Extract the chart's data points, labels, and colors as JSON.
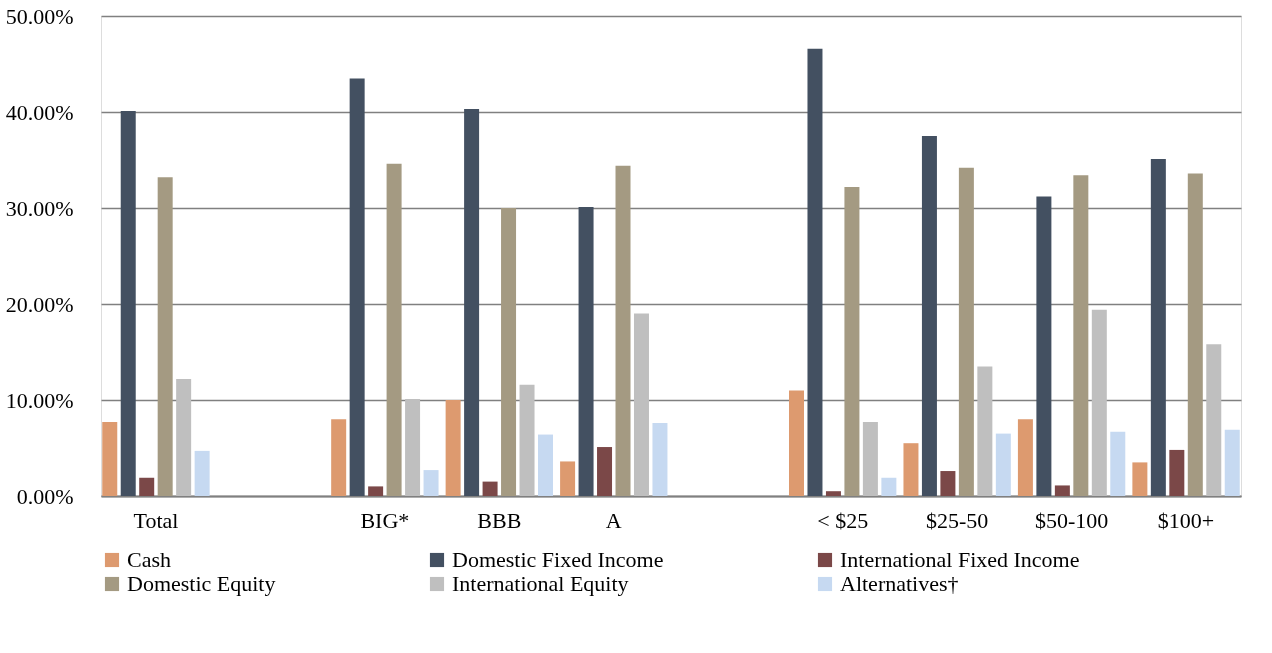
{
  "chart_data": {
    "type": "bar",
    "categories": [
      "Total",
      null,
      "BIG*",
      "BBB",
      "A",
      null,
      "< $25",
      "$25-50",
      "$50-100",
      "$100+"
    ],
    "series": [
      {
        "name": "Cash",
        "color": "#dd9a6f",
        "values": [
          7.7,
          null,
          8.0,
          10.0,
          3.6,
          null,
          11.0,
          5.5,
          8.0,
          3.5
        ]
      },
      {
        "name": "Domestic Fixed Income",
        "color": "#435061",
        "values": [
          40.1,
          null,
          43.5,
          40.3,
          30.1,
          null,
          46.6,
          37.5,
          31.2,
          35.1
        ]
      },
      {
        "name": "International Fixed Income",
        "color": "#7b4848",
        "values": [
          1.9,
          null,
          1.0,
          1.5,
          5.1,
          null,
          0.5,
          2.6,
          1.1,
          4.8
        ]
      },
      {
        "name": "Domestic Equity",
        "color": "#a49a82",
        "values": [
          33.2,
          null,
          34.6,
          30.0,
          34.4,
          null,
          32.2,
          34.2,
          33.4,
          33.6
        ]
      },
      {
        "name": "International Equity",
        "color": "#bfbfbf",
        "values": [
          12.2,
          null,
          10.1,
          11.6,
          19.0,
          null,
          7.7,
          13.5,
          19.4,
          15.8
        ]
      },
      {
        "name": "Alternatives†",
        "color": "#c6d9f1",
        "values": [
          4.7,
          null,
          2.7,
          6.4,
          7.6,
          null,
          1.9,
          6.5,
          6.7,
          6.9
        ]
      }
    ],
    "ylim": [
      0,
      50
    ],
    "yticks": [
      {
        "value": 0,
        "label": "0.00%"
      },
      {
        "value": 10,
        "label": "10.00%"
      },
      {
        "value": 20,
        "label": "20.00%"
      },
      {
        "value": 30,
        "label": "30.00%"
      },
      {
        "value": 40,
        "label": "40.00%"
      },
      {
        "value": 50,
        "label": "50.00%"
      }
    ],
    "grid": "y",
    "legend": "bottom"
  }
}
